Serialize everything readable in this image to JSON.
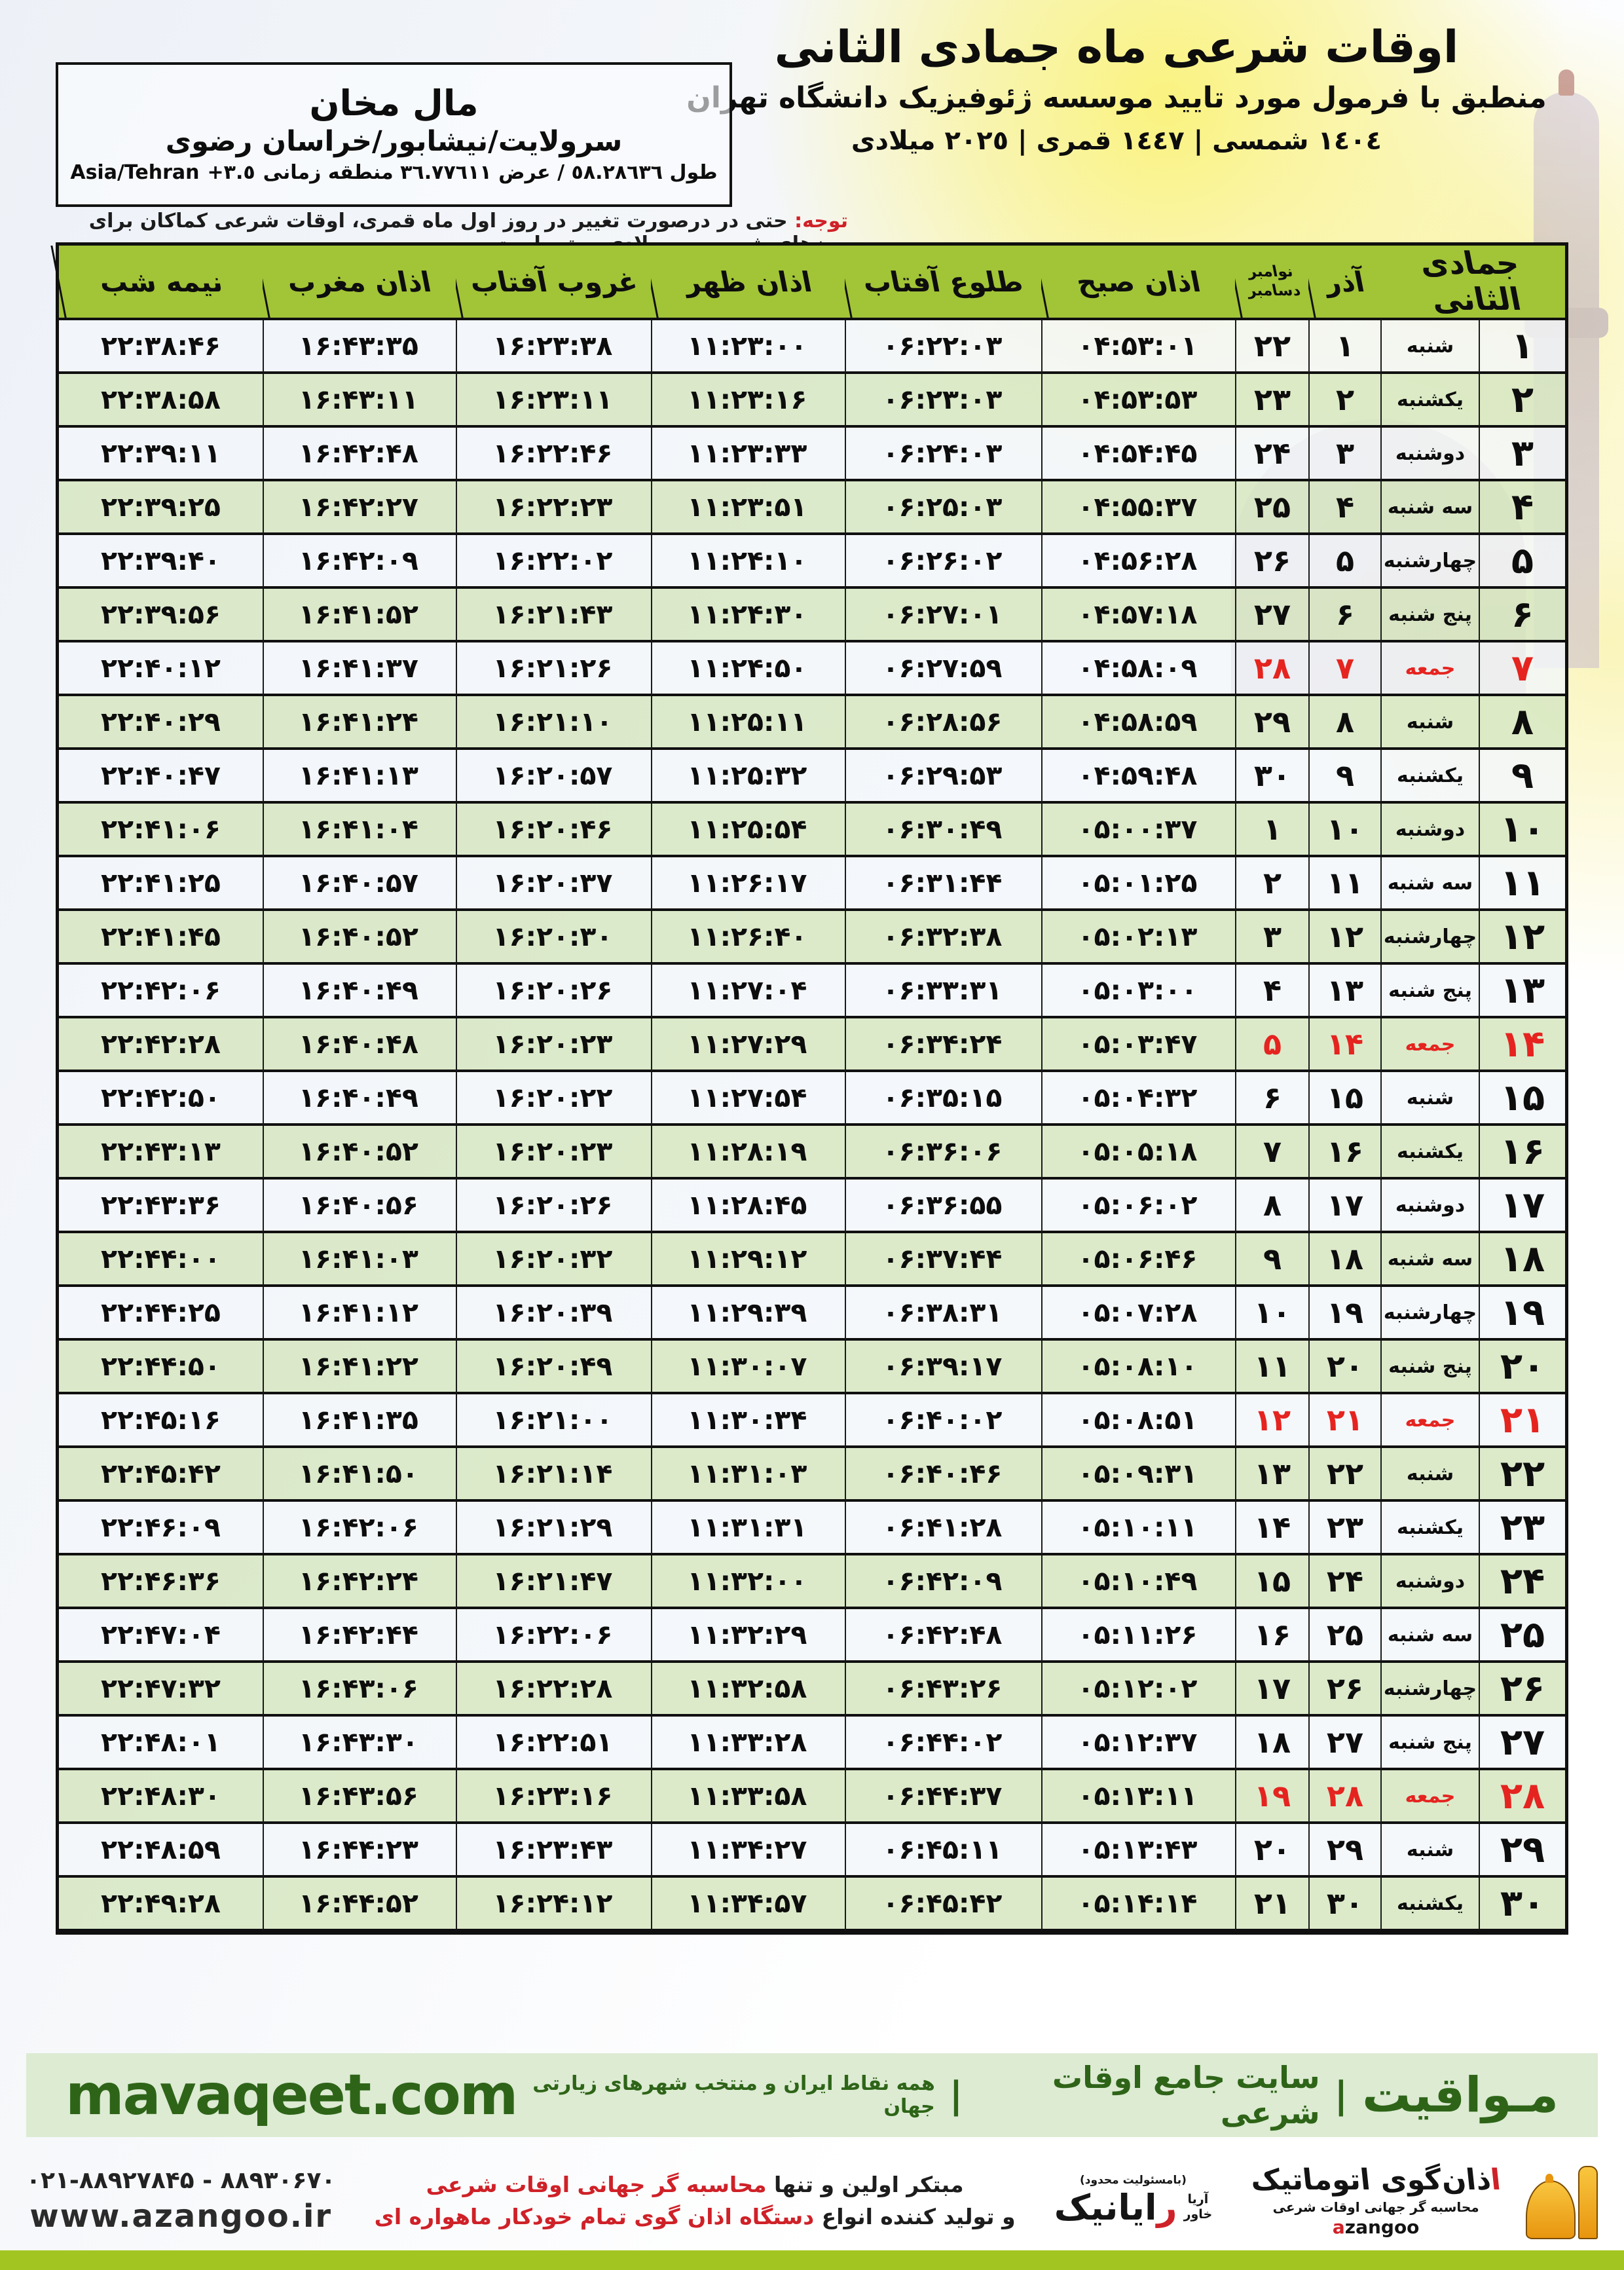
{
  "header": {
    "title": "اوقات شرعی ماه جمادی الثانی",
    "subtitle": "منطبق با فرمول مورد تایید موسسه ژئوفیزیک دانشگاه تهران",
    "years": "١٤٠٤ شمسی | ١٤٤٧ قمری | ٢٠٢٥ میلادی",
    "notice_label": "توجه:",
    "notice": "حتی در درصورت تغییر در روز اول ماه قمری، اوقات شرعی کماکان برای روزهای شمسی و میلادی معتبر است."
  },
  "location": {
    "city": "مال مخان",
    "region": "سرولایت/نیشابور/خراسان رضوی",
    "coords_fa": "طول ٥٨.٢٨٦٣٦ / عرض ٣٦.٧٧٦١١ منطقه زمانی",
    "coords_tz": "+٣.٥",
    "coords_zone": "Asia/Tehran"
  },
  "table": {
    "columns": {
      "jamadi": "جمادی الثانی",
      "azar": "آذر",
      "nov": "نوامبر",
      "dec": "دسامبر",
      "sobh": "اذان صبح",
      "tolu": "طلوع آفتاب",
      "zohr": "اذان ظهر",
      "ghorub": "غروب آفتاب",
      "maghreb": "اذان مغرب",
      "nimeshab": "نیمه شب"
    },
    "rows": [
      {
        "day": 1,
        "weekday": "شنبه",
        "azar": 1,
        "miladi": 22,
        "sobh": "04:53:01",
        "tolu": "06:22:03",
        "zohr": "11:23:00",
        "ghorub": "16:23:38",
        "maghreb": "16:43:35",
        "nimeshab": "22:38:46",
        "friday": false
      },
      {
        "day": 2,
        "weekday": "یکشنبه",
        "azar": 2,
        "miladi": 23,
        "sobh": "04:53:53",
        "tolu": "06:23:03",
        "zohr": "11:23:16",
        "ghorub": "16:23:11",
        "maghreb": "16:43:11",
        "nimeshab": "22:38:58",
        "friday": false
      },
      {
        "day": 3,
        "weekday": "دوشنبه",
        "azar": 3,
        "miladi": 24,
        "sobh": "04:54:45",
        "tolu": "06:24:03",
        "zohr": "11:23:33",
        "ghorub": "16:22:46",
        "maghreb": "16:42:48",
        "nimeshab": "22:39:11",
        "friday": false
      },
      {
        "day": 4,
        "weekday": "سه شنبه",
        "azar": 4,
        "miladi": 25,
        "sobh": "04:55:37",
        "tolu": "06:25:03",
        "zohr": "11:23:51",
        "ghorub": "16:22:23",
        "maghreb": "16:42:27",
        "nimeshab": "22:39:25",
        "friday": false
      },
      {
        "day": 5,
        "weekday": "چهارشنبه",
        "azar": 5,
        "miladi": 26,
        "sobh": "04:56:28",
        "tolu": "06:26:02",
        "zohr": "11:24:10",
        "ghorub": "16:22:02",
        "maghreb": "16:42:09",
        "nimeshab": "22:39:40",
        "friday": false
      },
      {
        "day": 6,
        "weekday": "پنج شنبه",
        "azar": 6,
        "miladi": 27,
        "sobh": "04:57:18",
        "tolu": "06:27:01",
        "zohr": "11:24:30",
        "ghorub": "16:21:43",
        "maghreb": "16:41:52",
        "nimeshab": "22:39:56",
        "friday": false
      },
      {
        "day": 7,
        "weekday": "جمعه",
        "azar": 7,
        "miladi": 28,
        "sobh": "04:58:09",
        "tolu": "06:27:59",
        "zohr": "11:24:50",
        "ghorub": "16:21:26",
        "maghreb": "16:41:37",
        "nimeshab": "22:40:12",
        "friday": true
      },
      {
        "day": 8,
        "weekday": "شنبه",
        "azar": 8,
        "miladi": 29,
        "sobh": "04:58:59",
        "tolu": "06:28:56",
        "zohr": "11:25:11",
        "ghorub": "16:21:10",
        "maghreb": "16:41:24",
        "nimeshab": "22:40:29",
        "friday": false
      },
      {
        "day": 9,
        "weekday": "یکشنبه",
        "azar": 9,
        "miladi": 30,
        "sobh": "04:59:48",
        "tolu": "06:29:53",
        "zohr": "11:25:32",
        "ghorub": "16:20:57",
        "maghreb": "16:41:13",
        "nimeshab": "22:40:47",
        "friday": false
      },
      {
        "day": 10,
        "weekday": "دوشنبه",
        "azar": 10,
        "miladi": 1,
        "sobh": "05:00:37",
        "tolu": "06:30:49",
        "zohr": "11:25:54",
        "ghorub": "16:20:46",
        "maghreb": "16:41:04",
        "nimeshab": "22:41:06",
        "friday": false
      },
      {
        "day": 11,
        "weekday": "سه شنبه",
        "azar": 11,
        "miladi": 2,
        "sobh": "05:01:25",
        "tolu": "06:31:44",
        "zohr": "11:26:17",
        "ghorub": "16:20:37",
        "maghreb": "16:40:57",
        "nimeshab": "22:41:25",
        "friday": false
      },
      {
        "day": 12,
        "weekday": "چهارشنبه",
        "azar": 12,
        "miladi": 3,
        "sobh": "05:02:13",
        "tolu": "06:32:38",
        "zohr": "11:26:40",
        "ghorub": "16:20:30",
        "maghreb": "16:40:52",
        "nimeshab": "22:41:45",
        "friday": false
      },
      {
        "day": 13,
        "weekday": "پنج شنبه",
        "azar": 13,
        "miladi": 4,
        "sobh": "05:03:00",
        "tolu": "06:33:31",
        "zohr": "11:27:04",
        "ghorub": "16:20:26",
        "maghreb": "16:40:49",
        "nimeshab": "22:42:06",
        "friday": false
      },
      {
        "day": 14,
        "weekday": "جمعه",
        "azar": 14,
        "miladi": 5,
        "sobh": "05:03:47",
        "tolu": "06:34:24",
        "zohr": "11:27:29",
        "ghorub": "16:20:23",
        "maghreb": "16:40:48",
        "nimeshab": "22:42:28",
        "friday": true
      },
      {
        "day": 15,
        "weekday": "شنبه",
        "azar": 15,
        "miladi": 6,
        "sobh": "05:04:32",
        "tolu": "06:35:15",
        "zohr": "11:27:54",
        "ghorub": "16:20:22",
        "maghreb": "16:40:49",
        "nimeshab": "22:42:50",
        "friday": false
      },
      {
        "day": 16,
        "weekday": "یکشنبه",
        "azar": 16,
        "miladi": 7,
        "sobh": "05:05:18",
        "tolu": "06:36:06",
        "zohr": "11:28:19",
        "ghorub": "16:20:23",
        "maghreb": "16:40:52",
        "nimeshab": "22:43:13",
        "friday": false
      },
      {
        "day": 17,
        "weekday": "دوشنبه",
        "azar": 17,
        "miladi": 8,
        "sobh": "05:06:02",
        "tolu": "06:36:55",
        "zohr": "11:28:45",
        "ghorub": "16:20:26",
        "maghreb": "16:40:56",
        "nimeshab": "22:43:36",
        "friday": false
      },
      {
        "day": 18,
        "weekday": "سه شنبه",
        "azar": 18,
        "miladi": 9,
        "sobh": "05:06:46",
        "tolu": "06:37:44",
        "zohr": "11:29:12",
        "ghorub": "16:20:32",
        "maghreb": "16:41:03",
        "nimeshab": "22:44:00",
        "friday": false
      },
      {
        "day": 19,
        "weekday": "چهارشنبه",
        "azar": 19,
        "miladi": 10,
        "sobh": "05:07:28",
        "tolu": "06:38:31",
        "zohr": "11:29:39",
        "ghorub": "16:20:39",
        "maghreb": "16:41:12",
        "nimeshab": "22:44:25",
        "friday": false
      },
      {
        "day": 20,
        "weekday": "پنج شنبه",
        "azar": 20,
        "miladi": 11,
        "sobh": "05:08:10",
        "tolu": "06:39:17",
        "zohr": "11:30:07",
        "ghorub": "16:20:49",
        "maghreb": "16:41:22",
        "nimeshab": "22:44:50",
        "friday": false
      },
      {
        "day": 21,
        "weekday": "جمعه",
        "azar": 21,
        "miladi": 12,
        "sobh": "05:08:51",
        "tolu": "06:40:02",
        "zohr": "11:30:34",
        "ghorub": "16:21:00",
        "maghreb": "16:41:35",
        "nimeshab": "22:45:16",
        "friday": true
      },
      {
        "day": 22,
        "weekday": "شنبه",
        "azar": 22,
        "miladi": 13,
        "sobh": "05:09:31",
        "tolu": "06:40:46",
        "zohr": "11:31:03",
        "ghorub": "16:21:14",
        "maghreb": "16:41:50",
        "nimeshab": "22:45:42",
        "friday": false
      },
      {
        "day": 23,
        "weekday": "یکشنبه",
        "azar": 23,
        "miladi": 14,
        "sobh": "05:10:11",
        "tolu": "06:41:28",
        "zohr": "11:31:31",
        "ghorub": "16:21:29",
        "maghreb": "16:42:06",
        "nimeshab": "22:46:09",
        "friday": false
      },
      {
        "day": 24,
        "weekday": "دوشنبه",
        "azar": 24,
        "miladi": 15,
        "sobh": "05:10:49",
        "tolu": "06:42:09",
        "zohr": "11:32:00",
        "ghorub": "16:21:47",
        "maghreb": "16:42:24",
        "nimeshab": "22:46:36",
        "friday": false
      },
      {
        "day": 25,
        "weekday": "سه شنبه",
        "azar": 25,
        "miladi": 16,
        "sobh": "05:11:26",
        "tolu": "06:42:48",
        "zohr": "11:32:29",
        "ghorub": "16:22:06",
        "maghreb": "16:42:44",
        "nimeshab": "22:47:04",
        "friday": false
      },
      {
        "day": 26,
        "weekday": "چهارشنبه",
        "azar": 26,
        "miladi": 17,
        "sobh": "05:12:02",
        "tolu": "06:43:26",
        "zohr": "11:32:58",
        "ghorub": "16:22:28",
        "maghreb": "16:43:06",
        "nimeshab": "22:47:32",
        "friday": false
      },
      {
        "day": 27,
        "weekday": "پنج شنبه",
        "azar": 27,
        "miladi": 18,
        "sobh": "05:12:37",
        "tolu": "06:44:02",
        "zohr": "11:33:28",
        "ghorub": "16:22:51",
        "maghreb": "16:43:30",
        "nimeshab": "22:48:01",
        "friday": false
      },
      {
        "day": 28,
        "weekday": "جمعه",
        "azar": 28,
        "miladi": 19,
        "sobh": "05:13:11",
        "tolu": "06:44:37",
        "zohr": "11:33:58",
        "ghorub": "16:23:16",
        "maghreb": "16:43:56",
        "nimeshab": "22:48:30",
        "friday": true
      },
      {
        "day": 29,
        "weekday": "شنبه",
        "azar": 29,
        "miladi": 20,
        "sobh": "05:13:43",
        "tolu": "06:45:11",
        "zohr": "11:34:27",
        "ghorub": "16:23:43",
        "maghreb": "16:44:23",
        "nimeshab": "22:48:59",
        "friday": false
      },
      {
        "day": 30,
        "weekday": "یکشنبه",
        "azar": 30,
        "miladi": 21,
        "sobh": "05:14:14",
        "tolu": "06:45:42",
        "zohr": "11:34:57",
        "ghorub": "16:24:12",
        "maghreb": "16:44:52",
        "nimeshab": "22:49:28",
        "friday": false
      }
    ]
  },
  "footer": {
    "mavaqeet": {
      "brand": "مـواقیت",
      "divider": "|",
      "tagline": "سایت جامع اوقات شرعی",
      "subtitle": "همه نقاط ایران و منتخب شهرهای زیارتی جهان",
      "url": "mavaqeet.com"
    },
    "contact": {
      "phone": "021-88927845 - 88930670",
      "website": "www.azangoo.ir"
    },
    "promo": {
      "line1_black": "مبتکر اولین و تنها",
      "line1_red": "محاسبه گر جهانی اوقات شرعی",
      "line2_black": "و تولید کننده انواع",
      "line2_red": "دستگاه اذان گوی تمام خودکار ماهواره ای"
    },
    "rayanik": {
      "note": "(بامسئولیت محدود)",
      "name": "رایانیک",
      "sub1": "خاور",
      "sub2": "آریا"
    },
    "azangoo": {
      "name": "اذان‌گوی اتوماتیک",
      "sub": "محاسبه گر جهانی اوقات شرعی",
      "latin_a": "a",
      "latin_rest": "zangoo"
    }
  },
  "colors": {
    "header_green": "#a2c437",
    "row_green": "#d7e7c3",
    "row_light": "#f3f6fa",
    "friday_red": "#e52420",
    "accent_red": "#cf2128",
    "footer_green": "#2e6418",
    "footer_bg": "#dcebd2",
    "bottom_bar": "#a3c521"
  }
}
